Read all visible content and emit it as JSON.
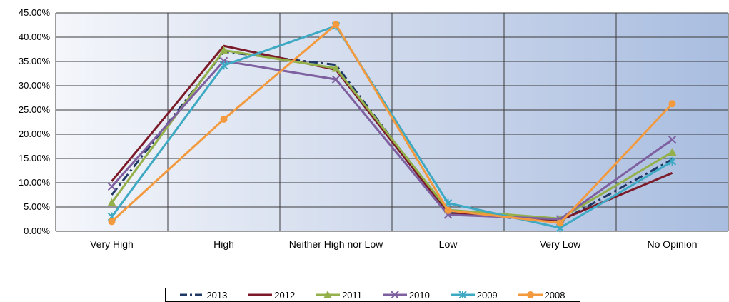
{
  "chart_data": {
    "type": "line",
    "categories": [
      "Very High",
      "High",
      "Neither High nor Low",
      "Low",
      "Very Low",
      "No Opinion"
    ],
    "y_ticks": [
      "0.00%",
      "5.00%",
      "10.00%",
      "15.00%",
      "20.00%",
      "25.00%",
      "30.00%",
      "35.00%",
      "40.00%",
      "45.00%"
    ],
    "ylim": [
      0,
      45
    ],
    "y_unit": "%",
    "grid": true,
    "legend_position": "bottom",
    "series": [
      {
        "name": "2013",
        "color": "#1f3864",
        "style": "dash-dot",
        "marker": "none",
        "values": [
          7.5,
          37.0,
          34.3,
          3.8,
          2.0,
          14.8
        ]
      },
      {
        "name": "2012",
        "color": "#7b1a28",
        "style": "solid",
        "marker": "none",
        "values": [
          10.3,
          38.2,
          33.3,
          3.7,
          2.3,
          12.0
        ]
      },
      {
        "name": "2011",
        "color": "#93b04a",
        "style": "solid",
        "marker": "triangle",
        "values": [
          5.9,
          37.3,
          33.6,
          4.4,
          2.6,
          16.3
        ]
      },
      {
        "name": "2010",
        "color": "#7e60a1",
        "style": "solid",
        "marker": "x",
        "values": [
          9.2,
          35.1,
          31.3,
          3.4,
          2.5,
          18.9
        ]
      },
      {
        "name": "2009",
        "color": "#3ea9c3",
        "style": "solid",
        "marker": "star",
        "values": [
          3.0,
          34.2,
          42.3,
          5.8,
          0.7,
          14.4
        ]
      },
      {
        "name": "2008",
        "color": "#f39a3e",
        "style": "solid",
        "marker": "circle",
        "values": [
          2.0,
          23.1,
          42.6,
          4.3,
          1.7,
          26.3
        ]
      }
    ]
  }
}
